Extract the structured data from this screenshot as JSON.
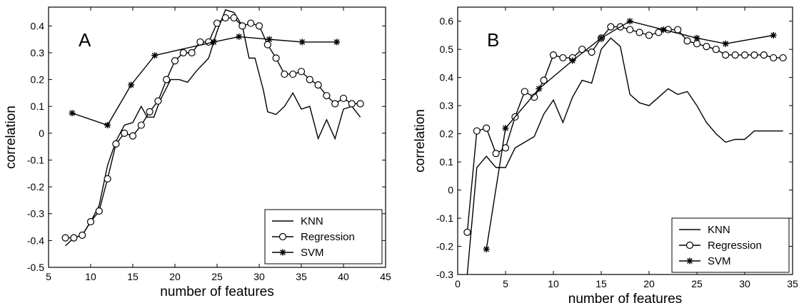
{
  "chart_data": [
    {
      "type": "line",
      "panel_label": "A",
      "xlabel": "number of features",
      "ylabel": "correlation",
      "xlim": [
        5,
        45
      ],
      "ylim": [
        -0.5,
        0.47
      ],
      "xticks": [
        5,
        10,
        15,
        20,
        25,
        30,
        35,
        40,
        45
      ],
      "yticks": [
        -0.5,
        -0.4,
        -0.3,
        -0.2,
        -0.1,
        0,
        0.1,
        0.2,
        0.3,
        0.4
      ],
      "ytick_labels": [
        "-0.5",
        "-0.4",
        "-0.3",
        "-0.2",
        "-0.1",
        "0",
        "0.1",
        "0.2",
        "0.3",
        "0.4"
      ],
      "grid": false,
      "legend": {
        "placement": "bottom-right",
        "entries": [
          "KNN",
          "Regression",
          "SVM"
        ]
      },
      "series": [
        {
          "name": "KNN",
          "marker": "none",
          "points": [
            [
              7,
              -0.42
            ],
            [
              8,
              -0.39
            ],
            [
              9,
              -0.38
            ],
            [
              10,
              -0.33
            ],
            [
              11,
              -0.27
            ],
            [
              12,
              -0.12
            ],
            [
              13,
              -0.03
            ],
            [
              14,
              0.03
            ],
            [
              15,
              0.04
            ],
            [
              16,
              0.1
            ],
            [
              16.7,
              0.06
            ],
            [
              17.5,
              0.06
            ],
            [
              18.2,
              0.12
            ],
            [
              19.5,
              0.2
            ],
            [
              20.5,
              0.2
            ],
            [
              21.5,
              0.19
            ],
            [
              22.5,
              0.23
            ],
            [
              24,
              0.28
            ],
            [
              25,
              0.38
            ],
            [
              26,
              0.46
            ],
            [
              27,
              0.45
            ],
            [
              28,
              0.4
            ],
            [
              28.8,
              0.28
            ],
            [
              29.5,
              0.28
            ],
            [
              30.5,
              0.16
            ],
            [
              31,
              0.08
            ],
            [
              32,
              0.07
            ],
            [
              33,
              0.1
            ],
            [
              34,
              0.15
            ],
            [
              35,
              0.09
            ],
            [
              36,
              0.1
            ],
            [
              37,
              -0.02
            ],
            [
              38,
              0.05
            ],
            [
              39,
              -0.02
            ],
            [
              40,
              0.09
            ],
            [
              41,
              0.1
            ],
            [
              42,
              0.06
            ]
          ]
        },
        {
          "name": "Regression",
          "marker": "circle",
          "points": [
            [
              7,
              -0.39
            ],
            [
              8,
              -0.39
            ],
            [
              9,
              -0.38
            ],
            [
              10,
              -0.33
            ],
            [
              11,
              -0.29
            ],
            [
              12,
              -0.17
            ],
            [
              13,
              -0.04
            ],
            [
              14,
              0.0
            ],
            [
              15,
              -0.01
            ],
            [
              16,
              0.03
            ],
            [
              17,
              0.08
            ],
            [
              18,
              0.12
            ],
            [
              19,
              0.2
            ],
            [
              20,
              0.27
            ],
            [
              21,
              0.3
            ],
            [
              22,
              0.3
            ],
            [
              23,
              0.34
            ],
            [
              24,
              0.34
            ],
            [
              25,
              0.41
            ],
            [
              26,
              0.43
            ],
            [
              27,
              0.43
            ],
            [
              28,
              0.4
            ],
            [
              29,
              0.41
            ],
            [
              30,
              0.4
            ],
            [
              31,
              0.33
            ],
            [
              32,
              0.28
            ],
            [
              33,
              0.22
            ],
            [
              34,
              0.22
            ],
            [
              35,
              0.23
            ],
            [
              36,
              0.2
            ],
            [
              37,
              0.18
            ],
            [
              38,
              0.14
            ],
            [
              39,
              0.11
            ],
            [
              40,
              0.13
            ],
            [
              41,
              0.11
            ],
            [
              42,
              0.11
            ]
          ]
        },
        {
          "name": "SVM",
          "marker": "star",
          "points": [
            [
              7.8,
              0.075
            ],
            [
              12,
              0.03
            ],
            [
              14.8,
              0.18
            ],
            [
              17.6,
              0.29
            ],
            [
              24.6,
              0.34
            ],
            [
              27.6,
              0.36
            ],
            [
              31.2,
              0.35
            ],
            [
              35.1,
              0.34
            ],
            [
              39.2,
              0.34
            ]
          ]
        }
      ]
    },
    {
      "type": "line",
      "panel_label": "B",
      "xlabel": "number of features",
      "ylabel": "correlation",
      "xlim": [
        0,
        35
      ],
      "ylim": [
        -0.3,
        0.65
      ],
      "xticks": [
        0,
        5,
        10,
        15,
        20,
        25,
        30,
        35
      ],
      "yticks": [
        -0.3,
        -0.2,
        -0.1,
        0,
        0.1,
        0.2,
        0.3,
        0.4,
        0.5,
        0.6
      ],
      "ytick_labels": [
        "-0.3",
        "-0.2",
        "-0.1",
        "0",
        "0.1",
        "0.2",
        "0.3",
        "0.4",
        "0.5",
        "0.6"
      ],
      "grid": false,
      "legend": {
        "placement": "bottom-right",
        "entries": [
          "KNN",
          "Regression",
          "SVM"
        ]
      },
      "series": [
        {
          "name": "KNN",
          "marker": "none",
          "points": [
            [
              1,
              -0.3
            ],
            [
              2,
              0.08
            ],
            [
              3,
              0.12
            ],
            [
              4,
              0.08
            ],
            [
              5,
              0.08
            ],
            [
              6,
              0.15
            ],
            [
              7,
              0.17
            ],
            [
              8,
              0.19
            ],
            [
              9,
              0.27
            ],
            [
              10,
              0.32
            ],
            [
              11,
              0.24
            ],
            [
              12,
              0.33
            ],
            [
              13,
              0.39
            ],
            [
              14,
              0.38
            ],
            [
              15,
              0.5
            ],
            [
              16,
              0.54
            ],
            [
              17,
              0.51
            ],
            [
              18,
              0.34
            ],
            [
              19,
              0.31
            ],
            [
              20,
              0.3
            ],
            [
              21,
              0.33
            ],
            [
              22,
              0.36
            ],
            [
              23,
              0.34
            ],
            [
              24,
              0.35
            ],
            [
              25,
              0.3
            ],
            [
              26,
              0.24
            ],
            [
              27,
              0.2
            ],
            [
              28,
              0.17
            ],
            [
              29,
              0.18
            ],
            [
              30,
              0.18
            ],
            [
              31,
              0.21
            ],
            [
              32,
              0.21
            ],
            [
              33,
              0.21
            ],
            [
              34,
              0.21
            ]
          ]
        },
        {
          "name": "Regression",
          "marker": "circle",
          "points": [
            [
              1,
              -0.15
            ],
            [
              2,
              0.21
            ],
            [
              3,
              0.22
            ],
            [
              4,
              0.13
            ],
            [
              5,
              0.15
            ],
            [
              6,
              0.26
            ],
            [
              7,
              0.35
            ],
            [
              8,
              0.33
            ],
            [
              9,
              0.39
            ],
            [
              10,
              0.48
            ],
            [
              11,
              0.47
            ],
            [
              12,
              0.47
            ],
            [
              13,
              0.5
            ],
            [
              14,
              0.49
            ],
            [
              15,
              0.54
            ],
            [
              16,
              0.58
            ],
            [
              17,
              0.58
            ],
            [
              18,
              0.57
            ],
            [
              19,
              0.56
            ],
            [
              20,
              0.55
            ],
            [
              21,
              0.56
            ],
            [
              22,
              0.57
            ],
            [
              23,
              0.57
            ],
            [
              24,
              0.53
            ],
            [
              25,
              0.52
            ],
            [
              26,
              0.51
            ],
            [
              27,
              0.5
            ],
            [
              28,
              0.48
            ],
            [
              29,
              0.48
            ],
            [
              30,
              0.48
            ],
            [
              31,
              0.48
            ],
            [
              32,
              0.48
            ],
            [
              33,
              0.47
            ],
            [
              34,
              0.47
            ]
          ]
        },
        {
          "name": "SVM",
          "marker": "star",
          "points": [
            [
              3,
              -0.21
            ],
            [
              5,
              0.22
            ],
            [
              8.5,
              0.36
            ],
            [
              12,
              0.46
            ],
            [
              15,
              0.54
            ],
            [
              18,
              0.6
            ],
            [
              21.5,
              0.57
            ],
            [
              25,
              0.54
            ],
            [
              28,
              0.52
            ],
            [
              33,
              0.55
            ]
          ]
        }
      ]
    }
  ]
}
